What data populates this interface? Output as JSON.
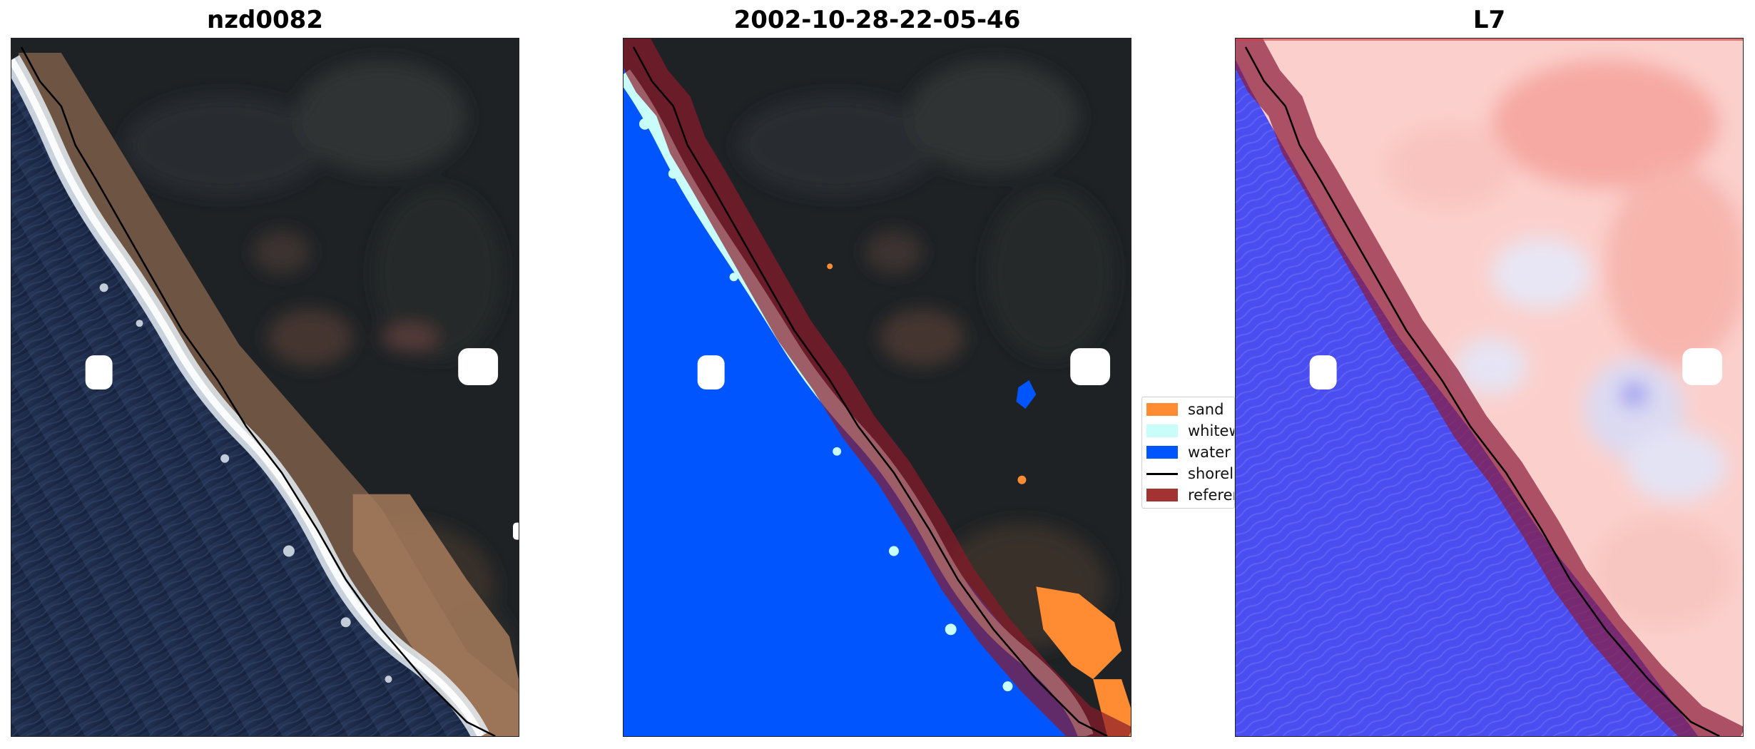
{
  "figure": {
    "panels": [
      {
        "title": "nzd0082"
      },
      {
        "title": "2002-10-28-22-05-46"
      },
      {
        "title": "L7"
      }
    ],
    "legend": {
      "items": [
        {
          "label": "sand",
          "color": "#ff8c33"
        },
        {
          "label": "whitewater",
          "color": "#c8fdf9"
        },
        {
          "label": "water",
          "color": "#0055ff"
        },
        {
          "label": "shoreline",
          "color": "#000000"
        },
        {
          "label": "reference shoreline buffer",
          "color": "#a33333"
        }
      ]
    }
  }
}
